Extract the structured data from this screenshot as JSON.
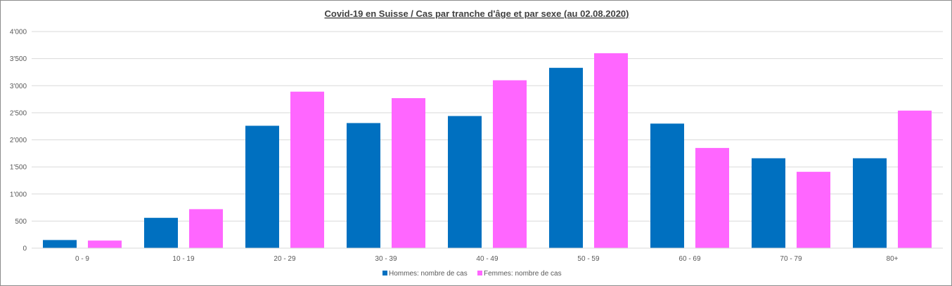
{
  "chart_data": {
    "type": "bar",
    "title": "Covid-19 en Suisse / Cas par tranche d'âge et par sexe (au 02.08.2020)",
    "xlabel": "",
    "ylabel": "",
    "categories": [
      "0 - 9",
      "10 - 19",
      "20 - 29",
      "30 - 39",
      "40 - 49",
      "50 - 59",
      "60 - 69",
      "70 - 79",
      "80+"
    ],
    "series": [
      {
        "name": "Hommes: nombre de cas",
        "color": "#0070c0",
        "values": [
          150,
          560,
          2260,
          2310,
          2440,
          3330,
          2300,
          1660,
          1660
        ]
      },
      {
        "name": "Femmes: nombre de cas",
        "color": "#ff66ff",
        "values": [
          140,
          720,
          2890,
          2770,
          3100,
          3600,
          1850,
          1410,
          2540
        ]
      }
    ],
    "ylim": [
      0,
      4000
    ],
    "yticks": [
      0,
      500,
      1000,
      1500,
      2000,
      2500,
      3000,
      3500,
      4000
    ],
    "ytick_labels": [
      "0",
      "500",
      "1'000",
      "1'500",
      "2'000",
      "2'500",
      "3'000",
      "3'500",
      "4'000"
    ],
    "grid": true,
    "legend_position": "bottom"
  }
}
